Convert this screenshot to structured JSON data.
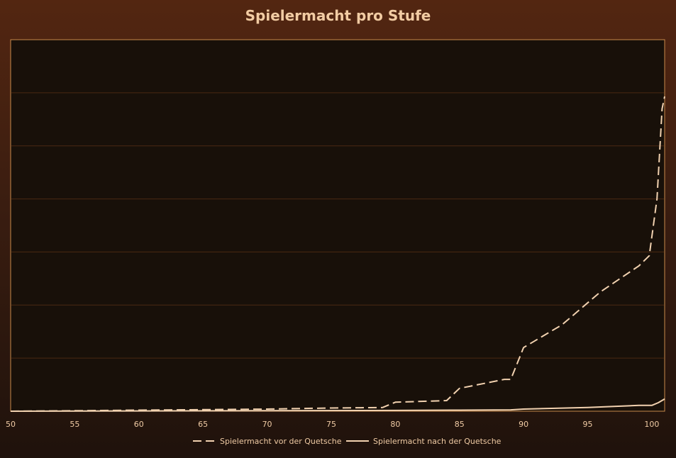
{
  "chart_data": {
    "type": "line",
    "title": "Spielermacht pro Stufe",
    "xlabel": "",
    "ylabel": "",
    "xlim": [
      50,
      101
    ],
    "ylim": [
      0,
      7
    ],
    "x_ticks": [
      50,
      55,
      60,
      65,
      70,
      75,
      80,
      85,
      90,
      95,
      100
    ],
    "y_gridlines": [
      1,
      2,
      3,
      4,
      5,
      6
    ],
    "y_tick_labels_shown": false,
    "grid": true,
    "legend_position": "bottom",
    "colors": {
      "line": "#f2d2b0",
      "plot_background": "#181009",
      "plot_border": "#c98a4b",
      "gridline": "#4a2812",
      "text": "#f0cba4"
    },
    "series": [
      {
        "name": "Spielermacht vor der Quetsche",
        "style": "dashed",
        "points": [
          [
            50,
            0.0
          ],
          [
            55,
            0.01
          ],
          [
            60,
            0.02
          ],
          [
            65,
            0.03
          ],
          [
            70,
            0.04
          ],
          [
            75,
            0.06
          ],
          [
            79,
            0.07
          ],
          [
            80,
            0.17
          ],
          [
            84,
            0.2
          ],
          [
            85,
            0.43
          ],
          [
            88.5,
            0.6
          ],
          [
            89,
            0.6
          ],
          [
            90,
            1.2
          ],
          [
            93,
            1.63
          ],
          [
            96,
            2.25
          ],
          [
            99,
            2.74
          ],
          [
            99.8,
            2.93
          ],
          [
            100.4,
            4.0
          ],
          [
            100.8,
            5.7
          ],
          [
            101,
            5.93
          ]
        ]
      },
      {
        "name": "Spielermacht nach der Quetsche",
        "style": "solid",
        "points": [
          [
            50,
            0.0
          ],
          [
            60,
            0.005
          ],
          [
            70,
            0.01
          ],
          [
            80,
            0.015
          ],
          [
            85,
            0.02
          ],
          [
            89,
            0.025
          ],
          [
            90,
            0.04
          ],
          [
            95,
            0.07
          ],
          [
            99,
            0.11
          ],
          [
            100,
            0.11
          ],
          [
            100.5,
            0.16
          ],
          [
            101,
            0.23
          ]
        ]
      }
    ]
  }
}
